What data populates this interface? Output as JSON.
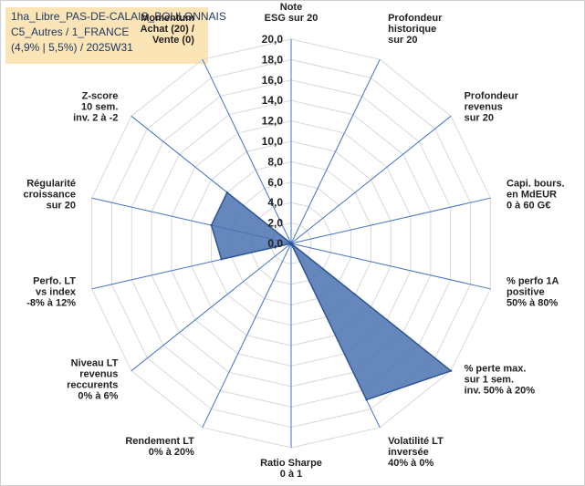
{
  "info": {
    "line1": "1ha_Libre_PAS-DE-CALAIS_BOULONNAIS",
    "line2": "C5_Autres / 1_FRANCE",
    "line3": "(4,9% | 5,5%) / 2025W31"
  },
  "chart_data": {
    "type": "radar",
    "grid": true,
    "rlim": [
      0,
      20
    ],
    "ticks": [
      "0,0",
      "2,0",
      "4,0",
      "6,0",
      "8,0",
      "10,0",
      "12,0",
      "14,0",
      "16,0",
      "18,0",
      "20,0"
    ],
    "axes": [
      [
        "Note",
        "ESG sur 20"
      ],
      [
        "Profondeur",
        "historique",
        "sur 20"
      ],
      [
        "Profondeur",
        "revenus",
        "sur 20"
      ],
      [
        "Capi. bours.",
        "en MdEUR",
        "0 à 60 G€"
      ],
      [
        "% perfo 1A",
        "positive",
        "50% à 80%"
      ],
      [
        "% perte max.",
        "sur 1 sem.",
        "inv. 50% à 20%"
      ],
      [
        "Volatilité LT",
        "inversée",
        "40% à 0%"
      ],
      [
        "Ratio Sharpe",
        "0 à 1"
      ],
      [
        "Rendement LT",
        "0% à 20%"
      ],
      [
        "Niveau LT",
        "revenus",
        "reccurents",
        "0% à 6%"
      ],
      [
        "Perfo. LT",
        "vs index",
        "-8% à 12%"
      ],
      [
        "Régularité",
        "croissance",
        "sur 20"
      ],
      [
        "Z-score",
        "10 sem.",
        "inv. 2 à -2"
      ],
      [
        "Momentum",
        "Achat (20) /",
        "Vente (0)"
      ]
    ],
    "series": [
      {
        "values": [
          0,
          0,
          0,
          0,
          0,
          20,
          17,
          0,
          0,
          0,
          7,
          8,
          8,
          0
        ]
      }
    ],
    "colors": {
      "fill": "#4a72b0",
      "stroke": "#2f5597",
      "spoke": "#4472c4",
      "grid": "#d9d9d9"
    }
  }
}
